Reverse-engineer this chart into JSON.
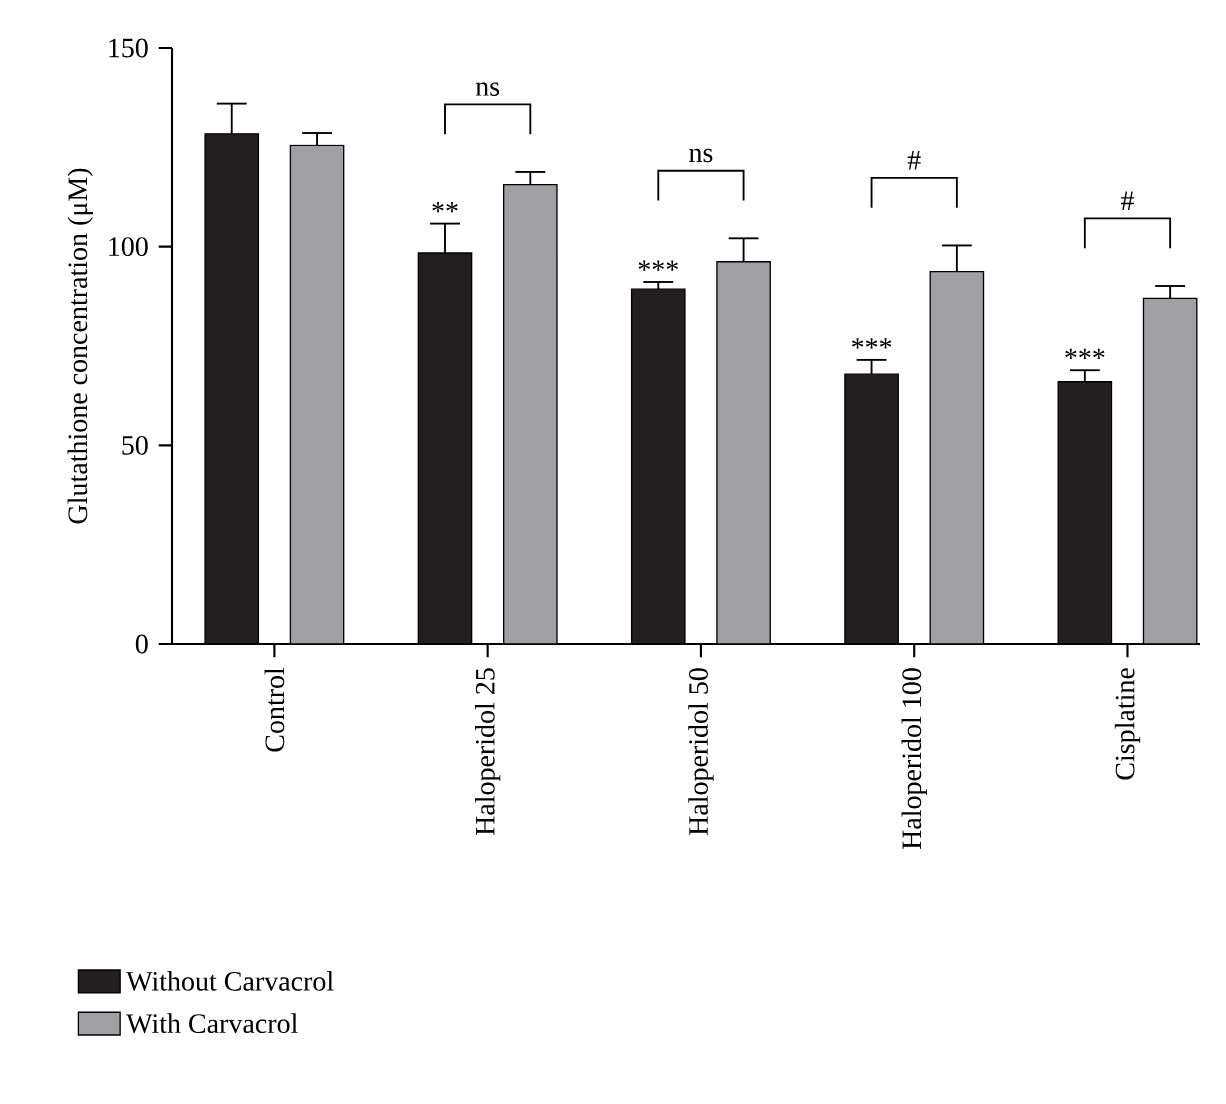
{
  "chart_data": {
    "type": "bar",
    "ylabel": "Glutathione concentration (μM)",
    "categories": [
      "Control",
      "Haloperidol 25",
      "Haloperidol 50",
      "Haloperidol 100",
      "Cisplatine"
    ],
    "series": [
      {
        "name": "Without Carvacrol",
        "color": "#231f20",
        "values": [
          128.4,
          98.4,
          89.3,
          67.9,
          66.0
        ],
        "errors": [
          [
            128.4,
            136.0
          ],
          [
            98.4,
            105.8
          ],
          [
            89.3,
            91.1
          ],
          [
            67.9,
            71.5
          ],
          [
            66.0,
            68.9
          ]
        ]
      },
      {
        "name": "With Carvacrol",
        "color": "#a0a0a4",
        "values": [
          125.5,
          115.6,
          96.2,
          93.7,
          87.0
        ],
        "errors": [
          [
            125.5,
            128.6
          ],
          [
            115.6,
            118.8
          ],
          [
            96.2,
            102.1
          ],
          [
            93.7,
            100.3
          ],
          [
            87.0,
            90.1
          ]
        ]
      }
    ],
    "ylim": [
      0,
      150
    ],
    "yticks": [
      0,
      50,
      100,
      150
    ],
    "legend": "bottom left",
    "annotations": [
      "**",
      "ns",
      "***",
      "ns",
      "***",
      "#",
      "***",
      "#"
    ]
  }
}
